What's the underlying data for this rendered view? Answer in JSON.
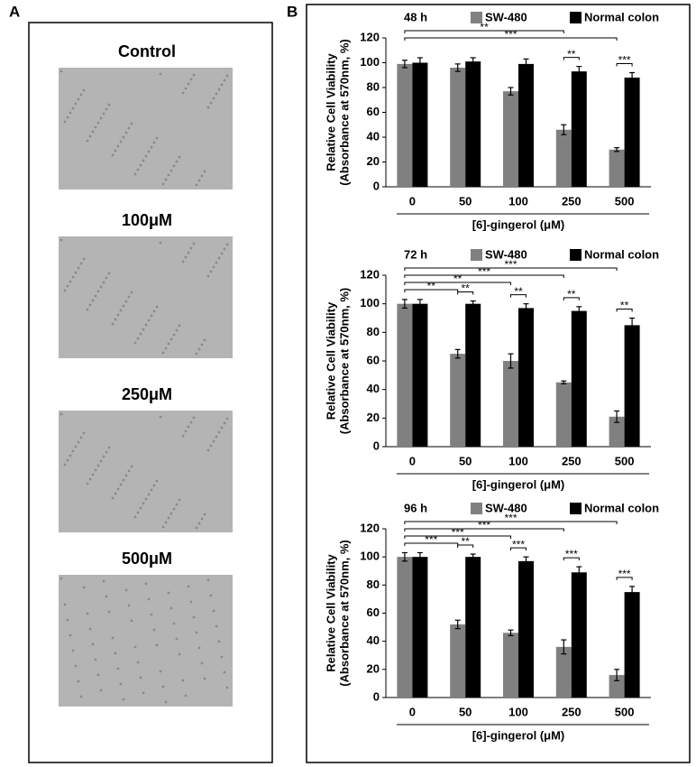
{
  "panel_labels": [
    "A",
    "B"
  ],
  "images": [
    "Control",
    "100μM",
    "250μM",
    "500μM"
  ],
  "chart_data": [
    {
      "type": "bar",
      "title": "48 h",
      "y_label": [
        "Relative Cell Viability",
        "(Absorbance at 570nm, %)"
      ],
      "x_label": "[6]-gingerol (μM)",
      "categories": [
        "0",
        "50",
        "100",
        "250",
        "500"
      ],
      "series": [
        {
          "name": "SW-480",
          "color": "#808080",
          "values": [
            99,
            96,
            77,
            46,
            30
          ],
          "errors": [
            3,
            3,
            3,
            4,
            1.5
          ]
        },
        {
          "name": "Normal colon",
          "color": "#000000",
          "values": [
            100,
            101,
            99,
            93,
            88
          ],
          "errors": [
            4,
            3,
            4,
            4,
            4
          ]
        }
      ],
      "annotations": [
        "**",
        "***",
        "**",
        "***"
      ],
      "ylim": [
        0,
        120
      ],
      "yticks": [
        0,
        20,
        40,
        60,
        80,
        100,
        120
      ]
    },
    {
      "type": "bar",
      "title": "72 h",
      "y_label": [
        "Relative Cell Viability",
        "(Absorbance at 570nm, %)"
      ],
      "x_label": "[6]-gingerol (μM)",
      "categories": [
        "0",
        "50",
        "100",
        "250",
        "500"
      ],
      "series": [
        {
          "name": "SW-480",
          "color": "#808080",
          "values": [
            100,
            65,
            60,
            45,
            21
          ],
          "errors": [
            3,
            3,
            5,
            1,
            4
          ]
        },
        {
          "name": "Normal colon",
          "color": "#000000",
          "values": [
            100,
            100,
            97,
            95,
            85
          ],
          "errors": [
            3,
            2,
            3,
            3,
            5
          ]
        }
      ],
      "annotations": [
        "***",
        "***",
        "**",
        "**",
        "**",
        "**",
        "**",
        "**"
      ],
      "ylim": [
        0,
        120
      ],
      "yticks": [
        0,
        20,
        40,
        60,
        80,
        100,
        120
      ]
    },
    {
      "type": "bar",
      "title": "96 h",
      "y_label": [
        "Relative Cell Viability",
        "(Absorbance at 570nm, %)"
      ],
      "x_label": "[6]-gingerol (μM)",
      "categories": [
        "0",
        "50",
        "100",
        "250",
        "500"
      ],
      "series": [
        {
          "name": "SW-480",
          "color": "#808080",
          "values": [
            100,
            52,
            46,
            36,
            16
          ],
          "errors": [
            3,
            3,
            2,
            5,
            4
          ]
        },
        {
          "name": "Normal colon",
          "color": "#000000",
          "values": [
            100,
            100,
            97,
            89,
            75
          ],
          "errors": [
            3,
            2,
            3,
            4,
            4
          ]
        }
      ],
      "annotations": [
        "***",
        "***",
        "***",
        "***",
        "**",
        "***",
        "***",
        "***"
      ],
      "ylim": [
        0,
        120
      ],
      "yticks": [
        0,
        20,
        40,
        60,
        80,
        100,
        120
      ]
    }
  ]
}
